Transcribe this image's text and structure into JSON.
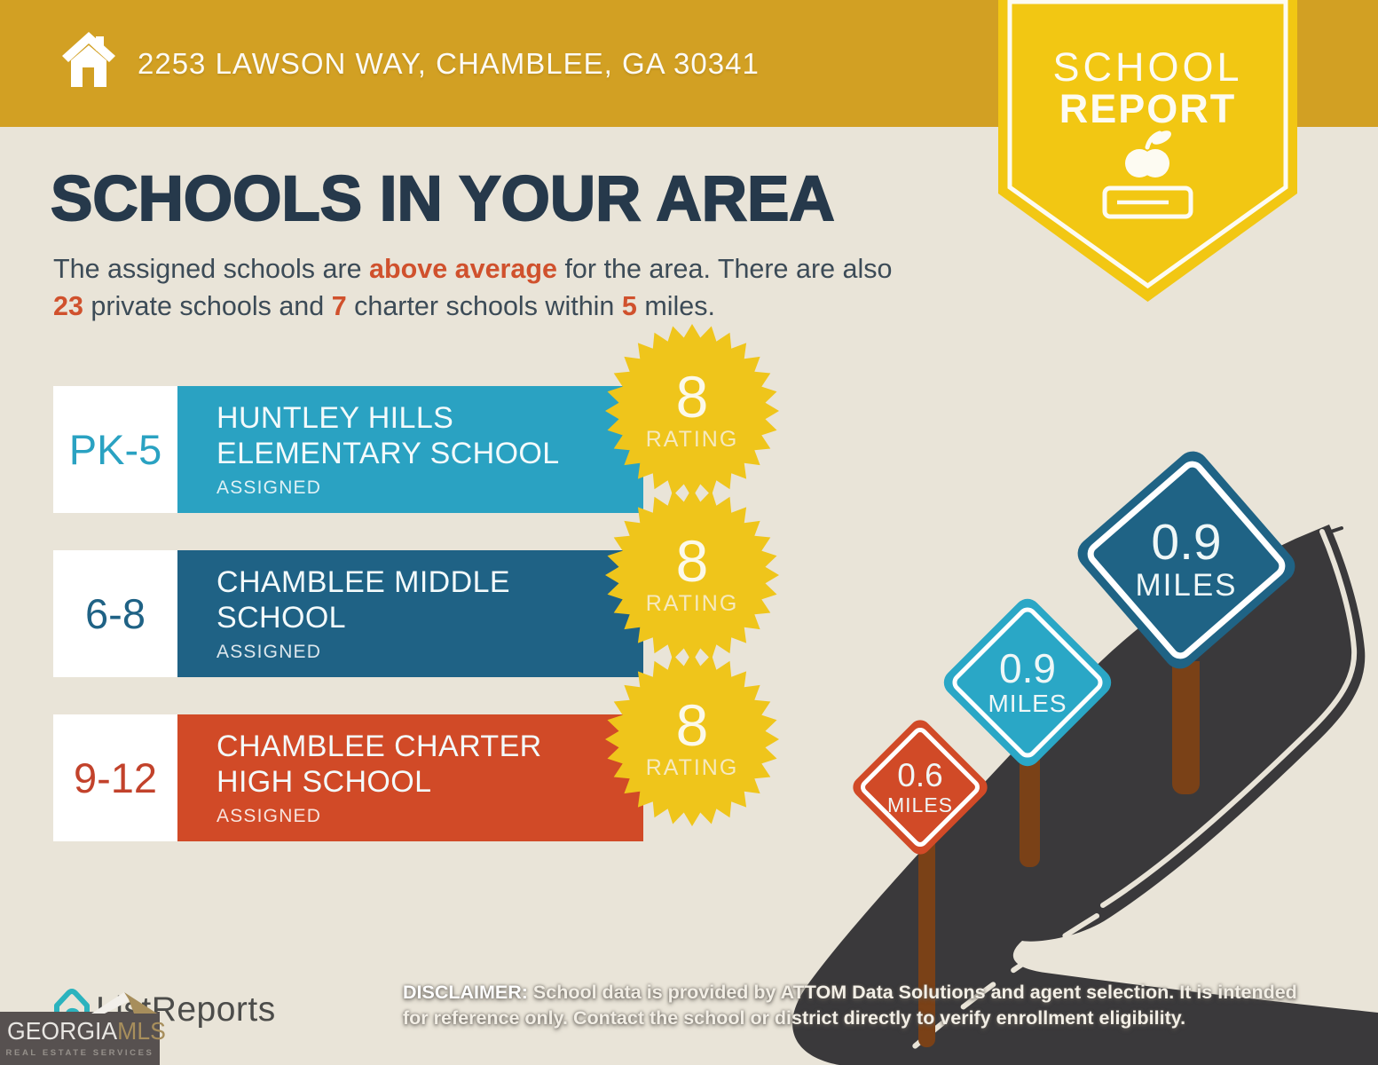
{
  "background_color": "#E9E4D8",
  "banner": {
    "address": "2253 LAWSON WAY, CHAMBLEE, GA 30341",
    "background": "#D2A023"
  },
  "report_badge": {
    "line1": "SCHOOL",
    "line2": "REPORT",
    "color": "#F2C713"
  },
  "main": {
    "heading": "SCHOOLS IN YOUR AREA",
    "heading_color": "#26394B",
    "accent_color": "#D0512D",
    "intro": {
      "seg1": "The assigned schools are ",
      "highlight_quality": "above average",
      "seg2": " for the area. There are also ",
      "private_count": "23",
      "seg3": " private schools and ",
      "charter_count": "7",
      "seg4": " charter schools within ",
      "radius_miles": "5",
      "seg5": " miles."
    }
  },
  "schools": [
    {
      "grades": "PK-5",
      "name_line1": "HUNTLEY HILLS",
      "name_line2": "ELEMENTARY SCHOOL",
      "status": "ASSIGNED",
      "rating": "8",
      "rating_label": "RATING",
      "color": "#2AA2C2"
    },
    {
      "grades": "6-8",
      "name_line1": "CHAMBLEE MIDDLE",
      "name_line2": "SCHOOL",
      "status": "ASSIGNED",
      "rating": "8",
      "rating_label": "RATING",
      "color": "#1F6285"
    },
    {
      "grades": "9-12",
      "name_line1": "CHAMBLEE CHARTER",
      "name_line2": "HIGH SCHOOL",
      "status": "ASSIGNED",
      "rating": "8",
      "rating_label": "RATING",
      "color": "#D14A27"
    }
  ],
  "rating_badge_color": "#EFC51B",
  "distance_signs": [
    {
      "distance": "0.6",
      "unit": "MILES",
      "color": "#D14A27"
    },
    {
      "distance": "0.9",
      "unit": "MILES",
      "color": "#2AA7C6"
    },
    {
      "distance": "0.9",
      "unit": "MILES",
      "color": "#1F6385"
    }
  ],
  "road": {
    "color": "#3A393B",
    "edge_line_color": "#E9E4D8",
    "post_color": "#7A4117"
  },
  "icons": {
    "home": "home-icon",
    "apple_book": "apple-on-book-icon",
    "listreports_house": "listreports-house-icon",
    "gmls_roof": "georgia-mls-roof-icon"
  },
  "footer": {
    "disclaimer_label": "DISCLAIMER:",
    "disclaimer_text": " School data is provided by ATTOM Data Solutions and agent selection. It is intended for reference only. Contact the school or district directly to verify enrollment eligibility.",
    "listreports_logo": "ListReports",
    "gmls_name_part1": "GEORGIA",
    "gmls_name_part2": "MLS",
    "gmls_tagline": "REAL ESTATE SERVICES"
  }
}
